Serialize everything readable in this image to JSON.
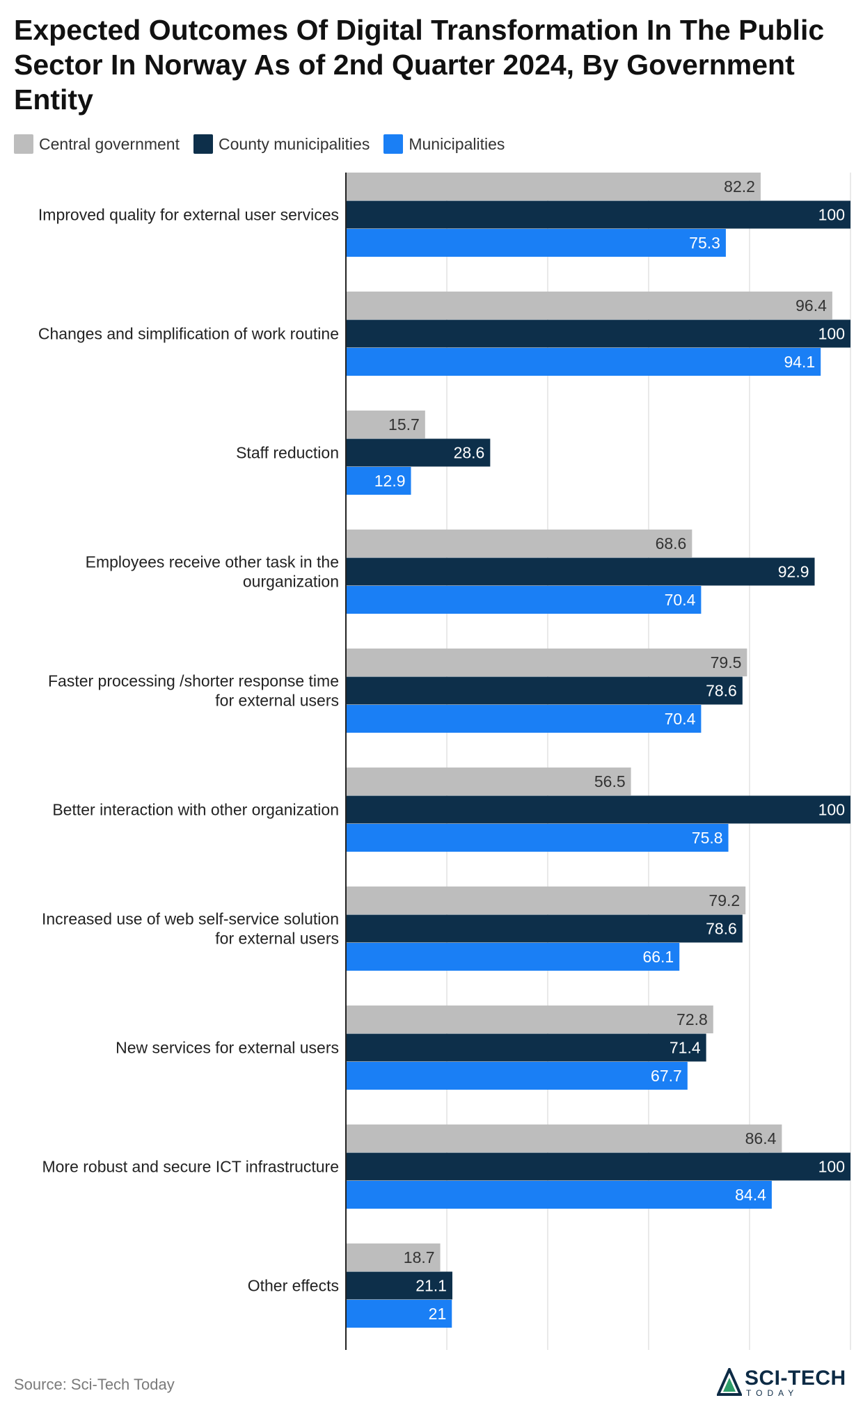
{
  "chart_data": {
    "type": "bar",
    "orientation": "horizontal",
    "title": "Expected Outcomes Of Digital Transformation In The Public Sector In Norway As of 2nd Quarter 2024, By Government Entity",
    "categories": [
      "Improved quality for external user services",
      "Changes and simplification of work routine",
      "Staff reduction",
      "Employees receive other task in the ourganization",
      "Faster processing /shorter response time for external users",
      "Better interaction with other organization",
      "Increased use of web self-service solution for external users",
      "New services for external users",
      "More robust and secure ICT infrastructure",
      "Other effects"
    ],
    "category_lines": [
      [
        "Improved quality for external user services"
      ],
      [
        "Changes and simplification of work routine"
      ],
      [
        "Staff reduction"
      ],
      [
        "Employees receive other task in the",
        "ourganization"
      ],
      [
        "Faster processing /shorter response time",
        "for external users"
      ],
      [
        "Better interaction with other organization"
      ],
      [
        "Increased use of web self-service solution",
        "for external users"
      ],
      [
        "New services for external users"
      ],
      [
        "More robust and secure ICT infrastructure"
      ],
      [
        "Other effects"
      ]
    ],
    "series": [
      {
        "name": "Central government",
        "color": "#bdbdbd",
        "label_color": "#333333",
        "values": [
          82.2,
          96.4,
          15.7,
          68.6,
          79.5,
          56.5,
          79.2,
          72.8,
          86.4,
          18.7
        ]
      },
      {
        "name": "County municipalities",
        "color": "#0d2f4a",
        "label_color": "#ffffff",
        "values": [
          100,
          100,
          28.6,
          92.9,
          78.6,
          100,
          78.6,
          71.4,
          100,
          21.1
        ]
      },
      {
        "name": "Municipalities",
        "color": "#1a7ff5",
        "label_color": "#ffffff",
        "values": [
          75.3,
          94.1,
          12.9,
          70.4,
          70.4,
          75.8,
          66.1,
          67.7,
          84.4,
          21
        ]
      }
    ],
    "xlim": [
      0,
      100
    ],
    "xticks": [
      0,
      20,
      40,
      60,
      80,
      100
    ],
    "grid": true,
    "legend": "top-left",
    "xlabel": "",
    "ylabel": ""
  },
  "footer": {
    "source": "Source: Sci-Tech Today",
    "logo_main": "SCI-TECH",
    "logo_sub": "TODAY"
  }
}
